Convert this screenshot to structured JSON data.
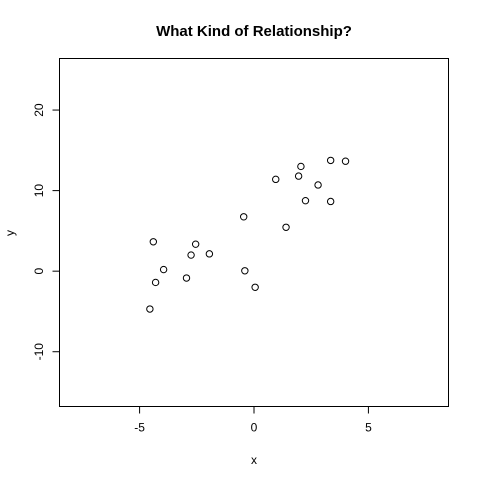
{
  "chart_data": {
    "type": "scatter",
    "title": "What Kind of Relationship?",
    "xlabel": "x",
    "ylabel": "y",
    "xlim": [
      -8.5,
      8.5
    ],
    "ylim": [
      -16.8,
      26.4
    ],
    "x_ticks": [
      -5,
      0,
      5
    ],
    "y_ticks": [
      -10,
      0,
      10,
      20
    ],
    "x_tick_labels": [
      "-5",
      "0",
      "5"
    ],
    "y_tick_labels": [
      "-10",
      "0",
      "10",
      "20"
    ],
    "grid": false,
    "legend": "none",
    "marker": "open-circle",
    "color": "#000000",
    "series": [
      {
        "points": [
          {
            "x": -4.55,
            "y": -4.7
          },
          {
            "x": -4.4,
            "y": 3.65
          },
          {
            "x": -4.3,
            "y": -1.4
          },
          {
            "x": -3.95,
            "y": 0.2
          },
          {
            "x": -2.95,
            "y": -0.85
          },
          {
            "x": -2.75,
            "y": 2.0
          },
          {
            "x": -2.55,
            "y": 3.35
          },
          {
            "x": -1.95,
            "y": 2.15
          },
          {
            "x": -0.45,
            "y": 6.75
          },
          {
            "x": -0.4,
            "y": 0.05
          },
          {
            "x": 0.05,
            "y": -2.0
          },
          {
            "x": 0.95,
            "y": 11.4
          },
          {
            "x": 1.4,
            "y": 5.45
          },
          {
            "x": 1.95,
            "y": 11.8
          },
          {
            "x": 2.05,
            "y": 13.0
          },
          {
            "x": 2.25,
            "y": 8.75
          },
          {
            "x": 2.8,
            "y": 10.7
          },
          {
            "x": 3.35,
            "y": 13.75
          },
          {
            "x": 3.35,
            "y": 8.65
          },
          {
            "x": 4.0,
            "y": 13.65
          }
        ]
      }
    ]
  }
}
